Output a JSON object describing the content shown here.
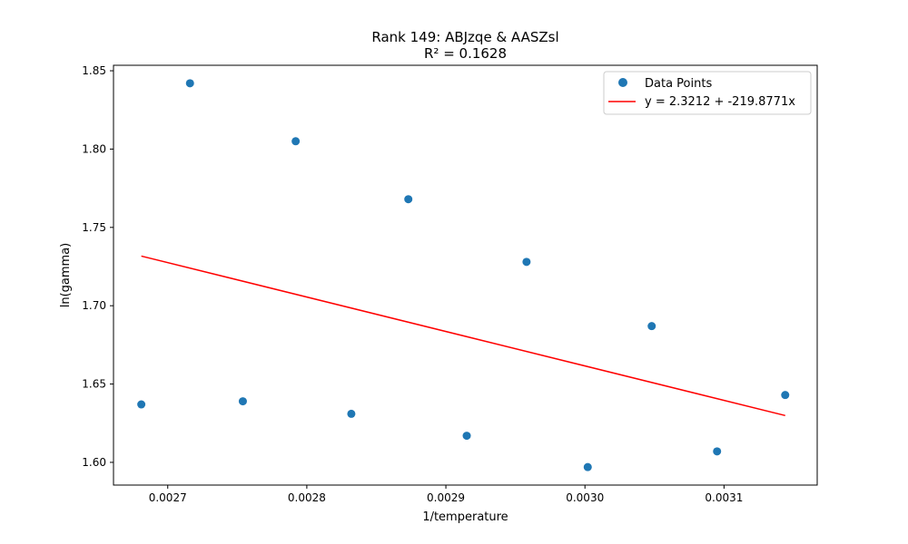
{
  "chart_data": {
    "type": "scatter",
    "title": "Rank 149: ABJzqe & AASZsl",
    "subtitle": "R² = 0.1628",
    "xlabel": "1/temperature",
    "ylabel": "ln(gamma)",
    "xlim": [
      0.002661,
      0.003167
    ],
    "ylim": [
      1.5855,
      1.8535
    ],
    "xticks": [
      0.0027,
      0.0028,
      0.0029,
      0.003,
      0.0031
    ],
    "xtick_labels": [
      "0.0027",
      "0.0028",
      "0.0029",
      "0.0030",
      "0.0031"
    ],
    "yticks": [
      1.6,
      1.65,
      1.7,
      1.75,
      1.8,
      1.85
    ],
    "ytick_labels": [
      "1.60",
      "1.65",
      "1.70",
      "1.75",
      "1.80",
      "1.85"
    ],
    "grid": false,
    "legend_position": "top-right",
    "series": [
      {
        "name": "Data Points",
        "kind": "scatter",
        "color": "#1f77b4",
        "x": [
          0.002681,
          0.002716,
          0.002754,
          0.002792,
          0.002832,
          0.002873,
          0.002915,
          0.002958,
          0.003002,
          0.003048,
          0.003095,
          0.003144
        ],
        "y": [
          1.637,
          1.842,
          1.639,
          1.805,
          1.631,
          1.768,
          1.617,
          1.728,
          1.597,
          1.687,
          1.607,
          1.643
        ]
      },
      {
        "name": "y = 2.3212 + -219.8771x",
        "kind": "line",
        "color": "#ff0000",
        "x": [
          0.002681,
          0.003144
        ],
        "y": [
          1.7317,
          1.6299
        ]
      }
    ]
  }
}
